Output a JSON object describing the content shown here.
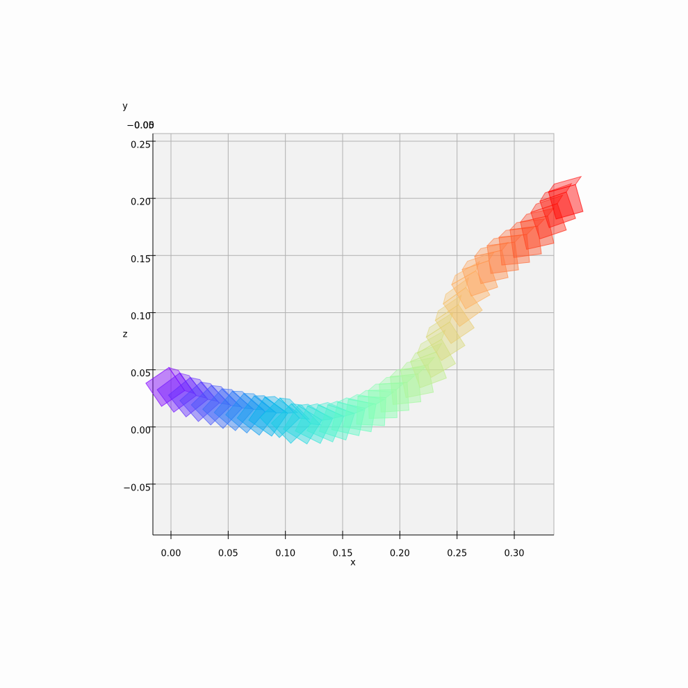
{
  "chart_data": {
    "type": "box-trajectory",
    "colormap": "rainbow",
    "grid": true,
    "xlabel": "x",
    "ylabel": "y",
    "zlabel": "z",
    "x": [
      -0.005,
      0.005,
      0.015,
      0.025,
      0.035,
      0.045,
      0.055,
      0.065,
      0.075,
      0.085,
      0.095,
      0.105,
      0.115,
      0.125,
      0.135,
      0.145,
      0.155,
      0.165,
      0.175,
      0.185,
      0.195,
      0.205,
      0.215,
      0.225,
      0.232,
      0.24,
      0.248,
      0.255,
      0.262,
      0.27,
      0.28,
      0.29,
      0.3,
      0.31,
      0.32,
      0.33,
      0.338,
      0.345
    ],
    "values": [
      0.035,
      0.03,
      0.026,
      0.022,
      0.019,
      0.016,
      0.014,
      0.012,
      0.01,
      0.009,
      0.008,
      0.003,
      0.002,
      0.002,
      0.003,
      0.004,
      0.007,
      0.01,
      0.014,
      0.02,
      0.026,
      0.033,
      0.04,
      0.05,
      0.06,
      0.075,
      0.09,
      0.105,
      0.12,
      0.13,
      0.14,
      0.148,
      0.155,
      0.162,
      0.17,
      0.18,
      0.19,
      0.197
    ],
    "xlim": [
      -0.0158,
      0.3346
    ],
    "xticks": [
      {
        "value": 0,
        "label": "0.00"
      },
      {
        "value": 0.05,
        "label": "0.05"
      },
      {
        "value": 0.1,
        "label": "0.10"
      },
      {
        "value": 0.15,
        "label": "0.15"
      },
      {
        "value": 0.2,
        "label": "0.20"
      },
      {
        "value": 0.25,
        "label": "0.25"
      },
      {
        "value": 0.3,
        "label": "0.30"
      }
    ],
    "zlim": [
      -0.0945,
      0.2567
    ],
    "zticks": [
      {
        "value": -0.05,
        "label": "−0.05"
      },
      {
        "value": 0,
        "label": "0.00"
      },
      {
        "value": 0.05,
        "label": "0.05"
      },
      {
        "value": 0.1,
        "label": "0.10"
      },
      {
        "value": 0.15,
        "label": "0.15"
      },
      {
        "value": 0.2,
        "label": "0.20"
      },
      {
        "value": 0.25,
        "label": "0.25"
      }
    ],
    "yticks": [
      {
        "value": -0.05,
        "label": "−0.05"
      },
      {
        "value": 0,
        "label": "0.00"
      },
      {
        "value": 0.05,
        "label": "0.05"
      }
    ]
  }
}
